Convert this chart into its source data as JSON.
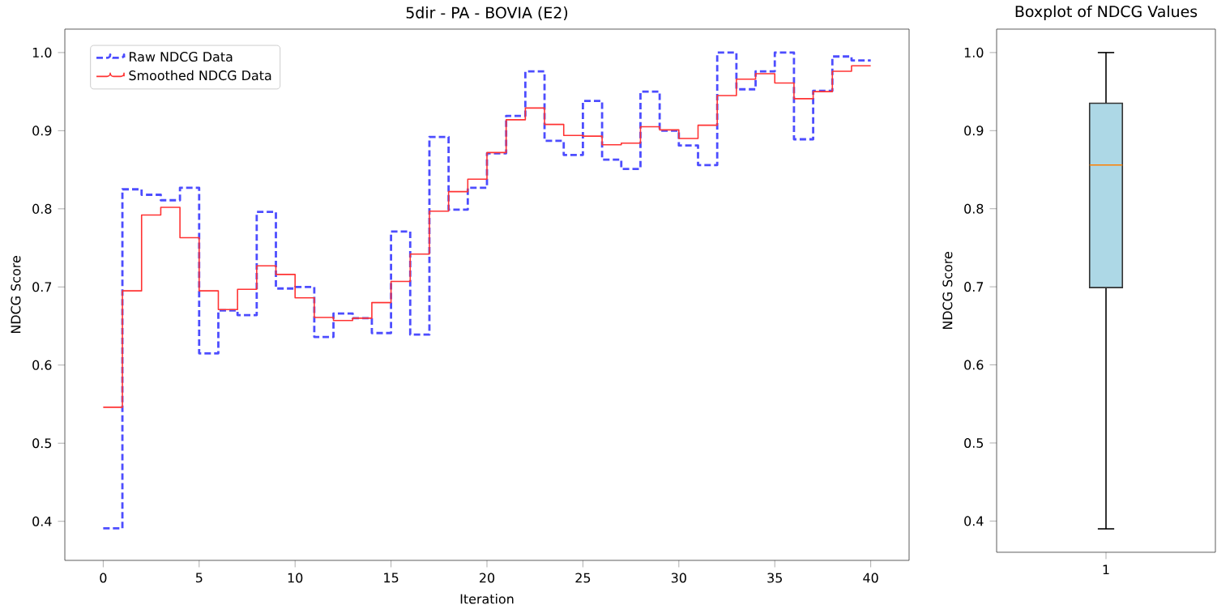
{
  "chart_data": [
    {
      "type": "step",
      "title": "5dir - PA - BOVIA (E2)",
      "xlabel": "Iteration",
      "ylabel": "NDCG Score",
      "x": [
        0,
        1,
        2,
        3,
        4,
        5,
        6,
        7,
        8,
        9,
        10,
        11,
        12,
        13,
        14,
        15,
        16,
        17,
        18,
        19,
        20,
        21,
        22,
        23,
        24,
        25,
        26,
        27,
        28,
        29,
        30,
        31,
        32,
        33,
        34,
        35,
        36,
        37,
        38,
        39,
        40
      ],
      "series": [
        {
          "name": "Raw NDCG Data",
          "color": "#4d4dff",
          "line_style": "dashed",
          "values": [
            0.391,
            0.825,
            0.818,
            0.811,
            0.827,
            0.615,
            0.67,
            0.664,
            0.796,
            0.698,
            0.7,
            0.636,
            0.666,
            0.66,
            0.641,
            0.771,
            0.639,
            0.892,
            0.799,
            0.827,
            0.871,
            0.919,
            0.976,
            0.887,
            0.869,
            0.938,
            0.863,
            0.851,
            0.95,
            0.9,
            0.881,
            0.856,
            1.0,
            0.953,
            0.976,
            1.0,
            0.889,
            0.951,
            0.995,
            0.99,
            0.99
          ]
        },
        {
          "name": "Smoothed NDCG Data",
          "color": "#ff3333",
          "line_style": "solid",
          "values": [
            0.546,
            0.695,
            0.792,
            0.802,
            0.763,
            0.695,
            0.671,
            0.697,
            0.727,
            0.716,
            0.686,
            0.661,
            0.657,
            0.66,
            0.68,
            0.707,
            0.742,
            0.797,
            0.822,
            0.838,
            0.872,
            0.914,
            0.929,
            0.908,
            0.894,
            0.893,
            0.882,
            0.884,
            0.905,
            0.901,
            0.89,
            0.907,
            0.945,
            0.966,
            0.973,
            0.961,
            0.941,
            0.95,
            0.976,
            0.983,
            0.983
          ]
        }
      ],
      "xlim": [
        -2,
        42
      ],
      "ylim": [
        0.35,
        1.03
      ],
      "xticks": [
        0,
        5,
        10,
        15,
        20,
        25,
        30,
        35,
        40
      ],
      "yticks": [
        0.4,
        0.5,
        0.6,
        0.7,
        0.8,
        0.9,
        {
          "value": 1.0,
          "label": "1.0"
        }
      ],
      "legend": "top left",
      "grid": false
    },
    {
      "type": "box",
      "title": "Boxplot of NDCG Values",
      "ylabel": "NDCG Score",
      "categories": [
        "1"
      ],
      "color": "#add8e6",
      "boxes": [
        {
          "low": 0.39,
          "q1": 0.699,
          "median": 0.856,
          "q3": 0.935,
          "high": 1.0
        }
      ],
      "ylim": [
        0.36,
        1.03
      ],
      "yticks": [
        0.4,
        0.5,
        0.6,
        0.7,
        0.8,
        0.9,
        {
          "value": 1.0,
          "label": "1.0"
        }
      ],
      "grid": false
    }
  ]
}
